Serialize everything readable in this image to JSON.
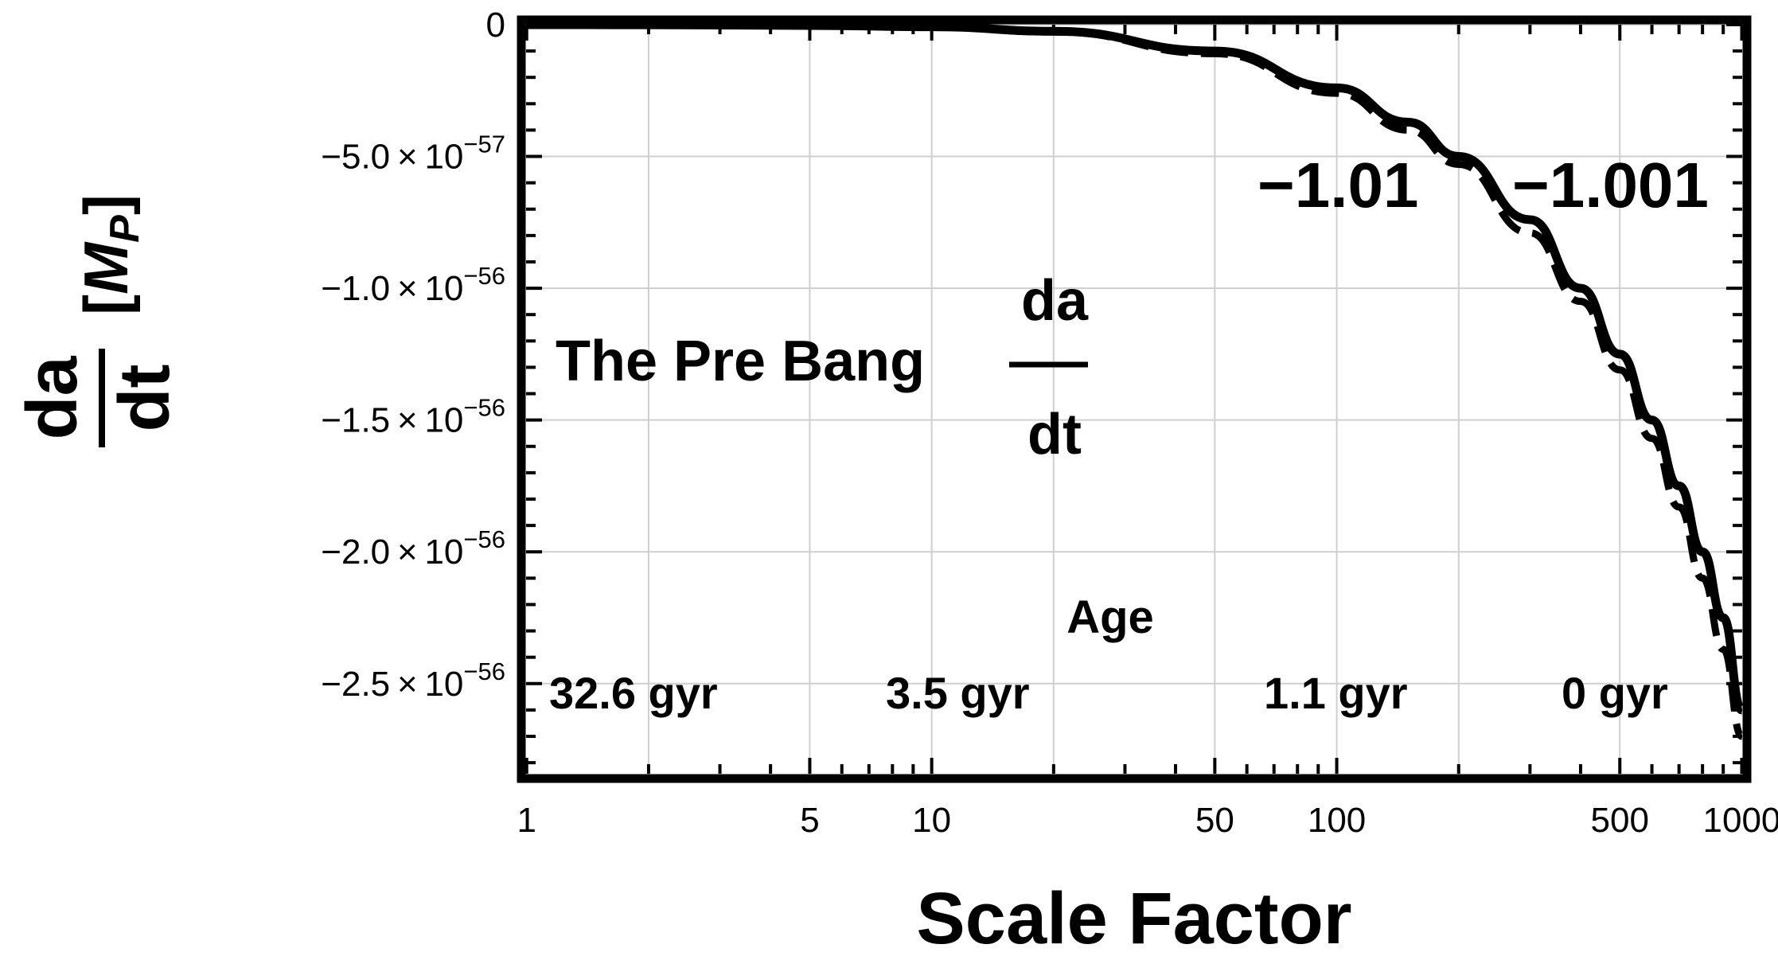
{
  "chart_data": {
    "type": "line",
    "title": "The Pre Bang",
    "title_fraction": {
      "numerator": "da",
      "denominator": "dt"
    },
    "xlabel": "Scale Factor",
    "ylabel": {
      "numerator": "da",
      "denominator": "dt",
      "units_open": "[",
      "units_symbol": "M",
      "units_subscript": "P",
      "units_close": "]"
    },
    "xscale": "log",
    "xlim": [
      0.97,
      1030
    ],
    "ylim": [
      -2.86e-56,
      1.8e-58
    ],
    "x_ticks": [
      {
        "value": 1,
        "label": "1"
      },
      {
        "value": 5,
        "label": "5"
      },
      {
        "value": 10,
        "label": "10"
      },
      {
        "value": 50,
        "label": "50"
      },
      {
        "value": 100,
        "label": "100"
      },
      {
        "value": 500,
        "label": "500"
      },
      {
        "value": 1000,
        "label": "1000"
      }
    ],
    "y_ticks": [
      {
        "value": 0,
        "mantissa": "0",
        "exponent": ""
      },
      {
        "value": -5e-57,
        "mantissa": "−5.0 × 10",
        "exponent": "−57"
      },
      {
        "value": -1e-56,
        "mantissa": "−1.0 × 10",
        "exponent": "−56"
      },
      {
        "value": -1.5e-56,
        "mantissa": "−1.5 × 10",
        "exponent": "−56"
      },
      {
        "value": -2e-56,
        "mantissa": "−2.0 × 10",
        "exponent": "−56"
      },
      {
        "value": -2.5e-56,
        "mantissa": "−2.5 × 10",
        "exponent": "−56"
      }
    ],
    "series": [
      {
        "name": "−1.001",
        "style": "solid",
        "x": [
          1,
          2,
          5,
          10,
          20,
          50,
          100,
          150,
          200,
          300,
          400,
          500,
          600,
          700,
          800,
          900,
          1000
        ],
        "y": [
          0,
          -5e-60,
          -3e-59,
          -8e-59,
          -2.5e-58,
          -1e-57,
          -2.4e-57,
          -3.7e-57,
          -5e-57,
          -7.4e-57,
          -1e-56,
          -1.25e-56,
          -1.5e-56,
          -1.75e-56,
          -2e-56,
          -2.25e-56,
          -2.6e-56
        ]
      },
      {
        "name": "−1.01",
        "style": "dashed",
        "x": [
          1,
          2,
          5,
          10,
          20,
          50,
          100,
          150,
          200,
          300,
          400,
          500,
          600,
          700,
          800,
          900,
          1000
        ],
        "y": [
          0,
          -6e-60,
          -3.5e-59,
          -9e-59,
          -2.8e-58,
          -1.1e-57,
          -2.6e-57,
          -4e-57,
          -5.3e-57,
          -7.9e-57,
          -1.05e-56,
          -1.31e-56,
          -1.57e-56,
          -1.83e-56,
          -2.1e-56,
          -2.37e-56,
          -2.7e-56
        ]
      }
    ],
    "annotations": {
      "age_title": "Age",
      "ages": [
        {
          "label": "32.6 gyr",
          "x": 1.0
        },
        {
          "label": "3.5 gyr",
          "x": 8.0
        },
        {
          "label": "1.1 gyr",
          "x": 80
        },
        {
          "label": "0 gyr",
          "x": 450
        }
      ],
      "series_labels": [
        {
          "label": "−1.01",
          "x": 95
        },
        {
          "label": "−1.001",
          "x": 480
        }
      ]
    },
    "grid": true,
    "frame": "thick"
  }
}
